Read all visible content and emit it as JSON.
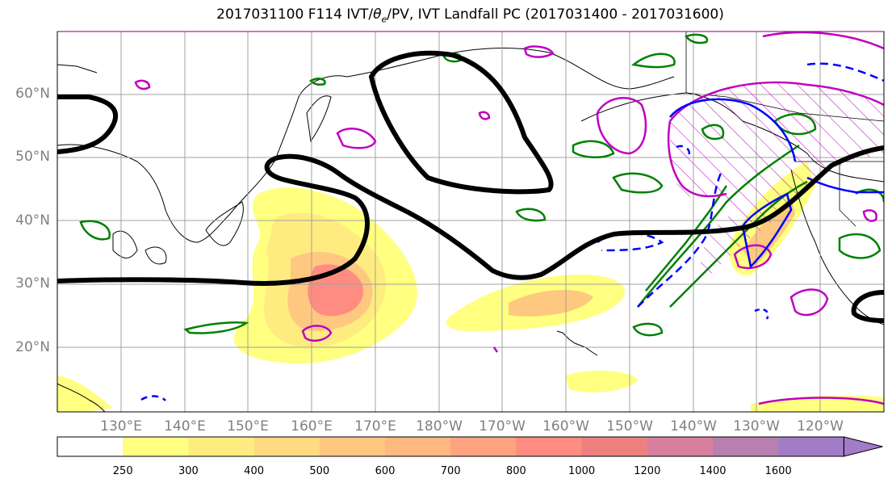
{
  "title": {
    "prefix": "2017031100 F114 IVT/",
    "theta": "θ",
    "theta_sub": "e",
    "suffix": "/PV, IVT Landfall PC (2017031400 - 2017031600)"
  },
  "lat_labels": [
    "60°N",
    "50°N",
    "40°N",
    "30°N",
    "20°N"
  ],
  "lon_labels": [
    "130°E",
    "140°E",
    "150°E",
    "160°E",
    "170°E",
    "180°W",
    "170°W",
    "160°W",
    "150°W",
    "140°W",
    "130°W",
    "120°W"
  ],
  "colorbar": {
    "ticks": [
      "250",
      "300",
      "400",
      "500",
      "600",
      "700",
      "800",
      "1000",
      "1200",
      "1400",
      "1600"
    ],
    "colors": [
      "#ffffff",
      "#ffff80",
      "#ffec80",
      "#ffda80",
      "#ffc880",
      "#ffb880",
      "#ffa280",
      "#ff8c80",
      "#ee8080",
      "#d87f9e",
      "#b780b0",
      "#a27cc6"
    ]
  },
  "colors": {
    "theta_e_contour": "#008000",
    "pv_contour": "#c000c0",
    "negative_contour": "#0000ff",
    "ivt_landfall": "#000000",
    "axis_label": "#808080"
  }
}
